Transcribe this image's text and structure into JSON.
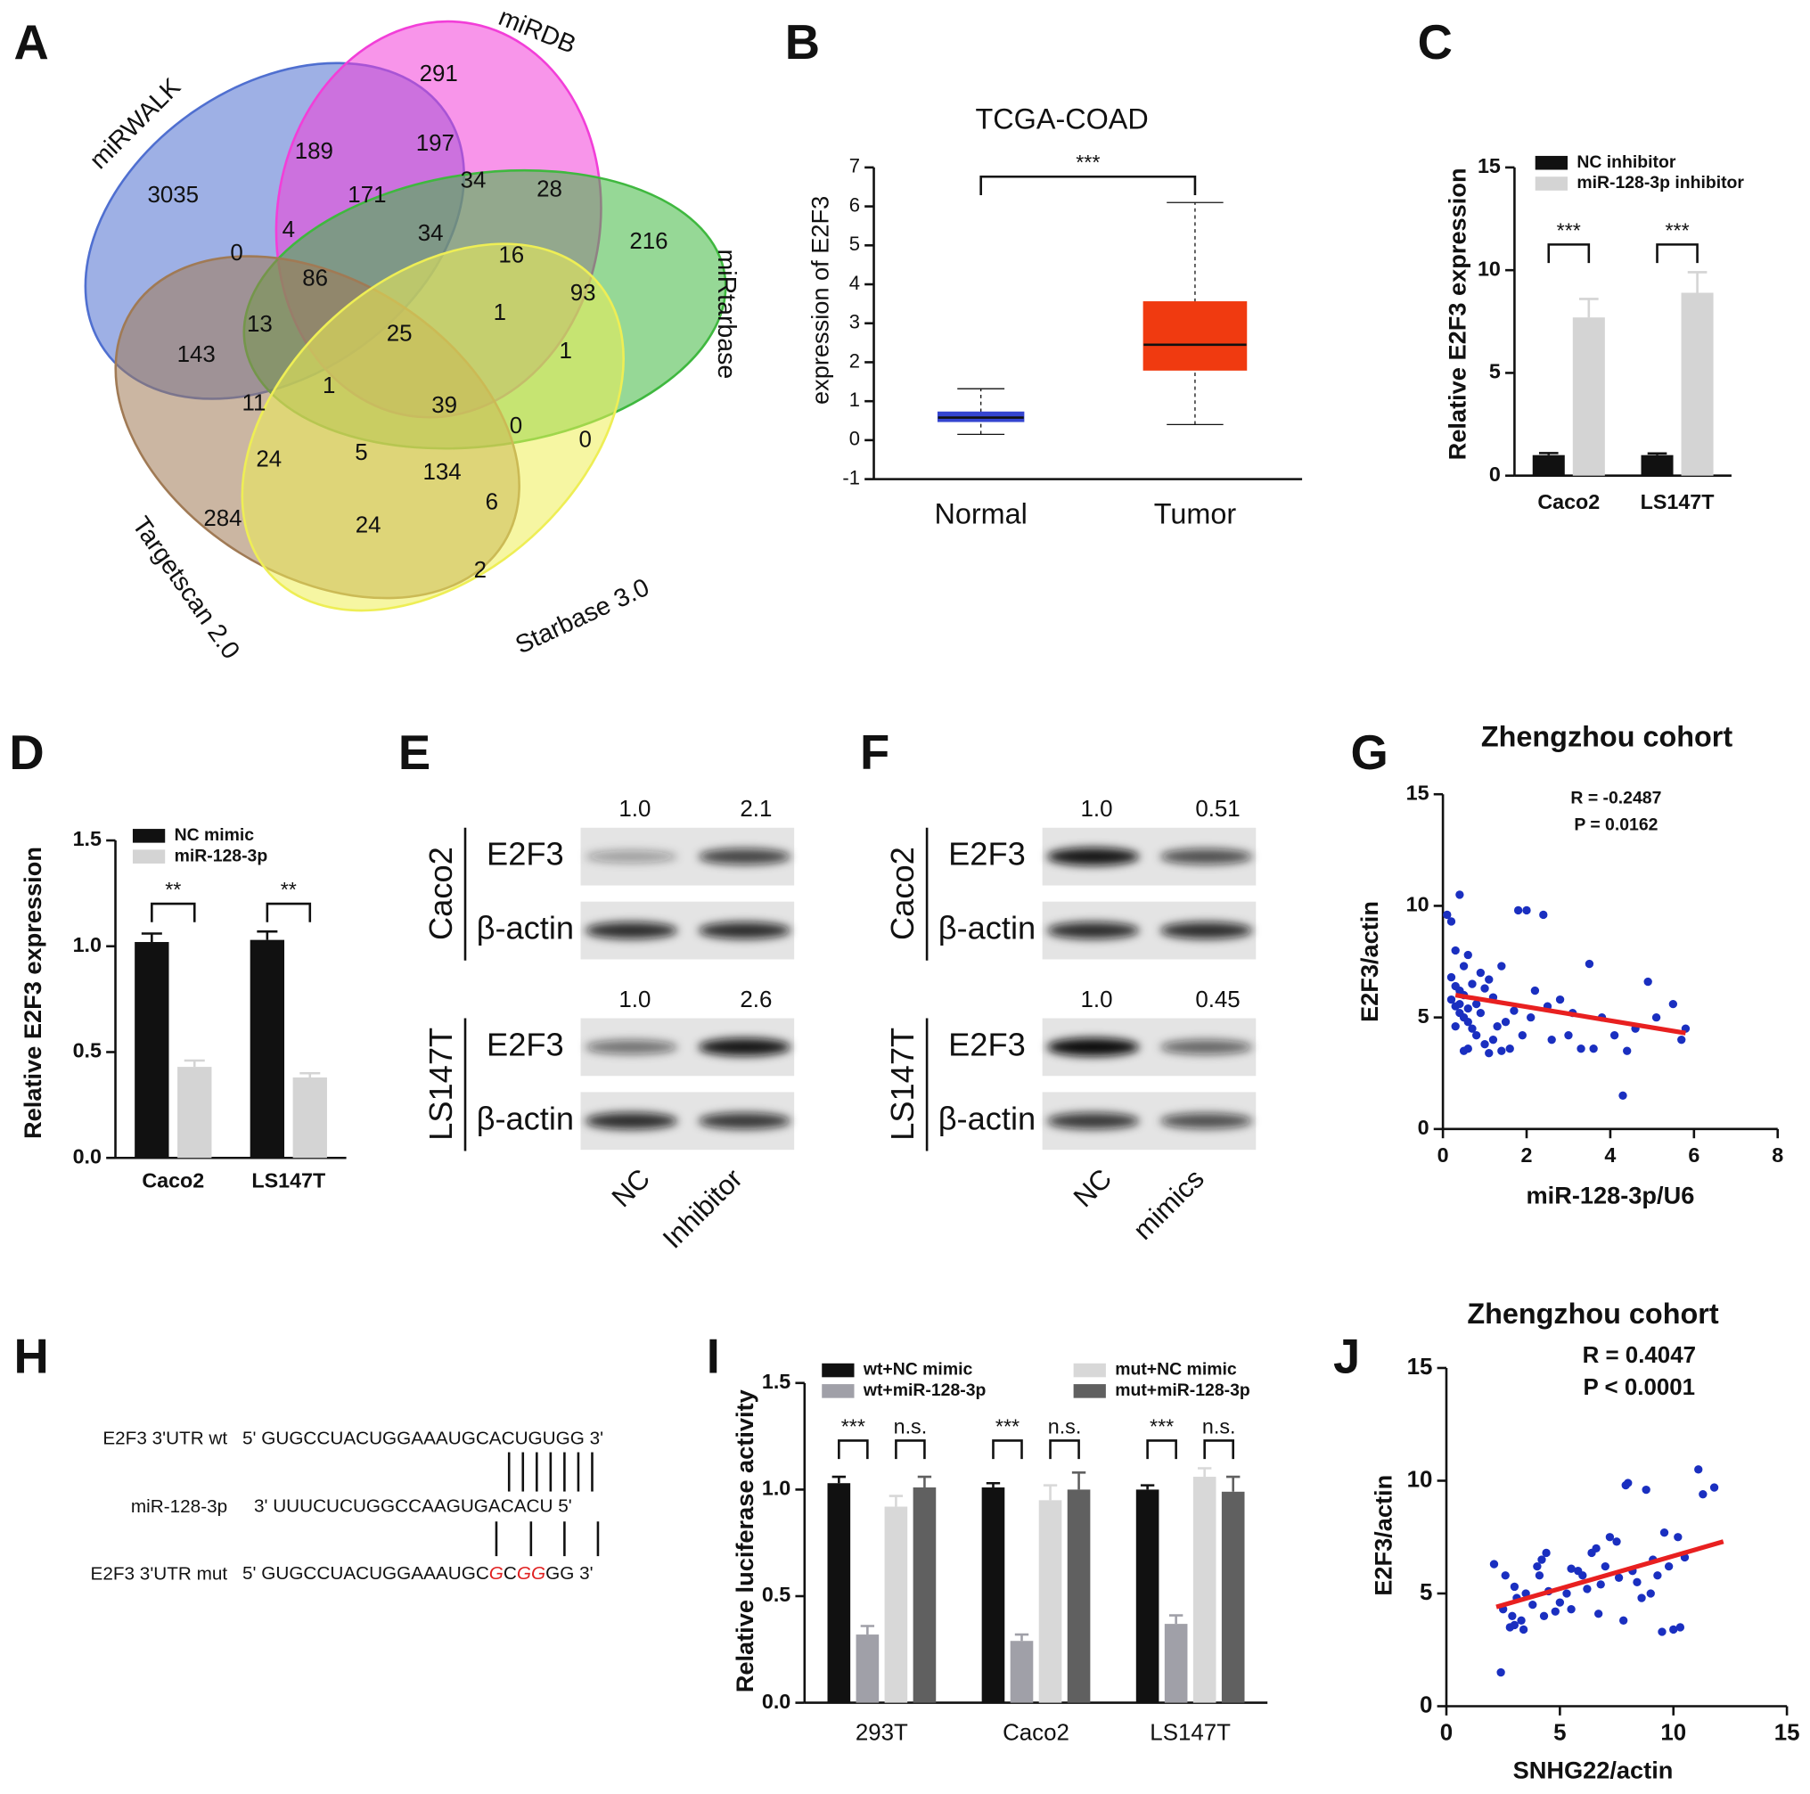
{
  "venn": {
    "panel": "A",
    "sets": [
      {
        "name": "miRWALK",
        "color": "#4f6fd0"
      },
      {
        "name": "miRDB",
        "color": "#f23ed8"
      },
      {
        "name": "miRtarbase",
        "color": "#3fb83f"
      },
      {
        "name": "Targetscan 2.0",
        "color": "#a07a55"
      },
      {
        "name": "Starbase 3.0",
        "color": "#eeee55"
      }
    ],
    "regions": [
      291,
      189,
      197,
      3035,
      171,
      34,
      28,
      216,
      0,
      4,
      34,
      16,
      86,
      93,
      13,
      25,
      1,
      143,
      1,
      1,
      11,
      39,
      0,
      0,
      24,
      5,
      134,
      6,
      284,
      24,
      2
    ]
  },
  "chart_data": [
    {
      "type": "box",
      "panel": "B",
      "title": "TCGA-COAD",
      "y_label": "expression of E2F3",
      "categories": [
        "Normal",
        "Tumor"
      ],
      "colors": [
        "#3545d0",
        "#f03a10"
      ],
      "boxes": [
        {
          "min": 0.15,
          "q1": 0.48,
          "median": 0.58,
          "q3": 0.72,
          "max": 1.32
        },
        {
          "min": 0.4,
          "q1": 1.8,
          "median": 2.45,
          "q3": 3.55,
          "max": 6.1
        }
      ],
      "annotations": [
        "***"
      ],
      "ylim": [
        -1,
        7
      ],
      "yticks": [
        -1,
        0,
        1,
        2,
        3,
        4,
        5,
        6,
        7
      ]
    },
    {
      "type": "bar",
      "panel": "C",
      "y_label": "Relative E2F3 expression",
      "categories": [
        "Caco2",
        "LS147T"
      ],
      "series": [
        {
          "name": "NC inhibitor",
          "color": "#111111",
          "values": [
            1.0,
            1.0
          ],
          "errors": [
            0.1,
            0.08
          ]
        },
        {
          "name": "miR-128-3p inhibitor",
          "color": "#d4d4d4",
          "values": [
            7.7,
            8.9
          ],
          "errors": [
            0.9,
            1.0
          ]
        }
      ],
      "annotations": [
        "***",
        "***"
      ],
      "ylim": [
        0,
        15
      ],
      "yticks": [
        0,
        5,
        10,
        15
      ]
    },
    {
      "type": "bar",
      "panel": "D",
      "y_label": "Relative E2F3 expression",
      "categories": [
        "Caco2",
        "LS147T"
      ],
      "series": [
        {
          "name": "NC mimic",
          "color": "#111111",
          "values": [
            1.02,
            1.03
          ],
          "errors": [
            0.04,
            0.04
          ]
        },
        {
          "name": "miR-128-3p",
          "color": "#d4d4d4",
          "values": [
            0.43,
            0.38
          ],
          "errors": [
            0.03,
            0.02
          ]
        }
      ],
      "annotations": [
        "**",
        "**"
      ],
      "ylim": [
        0,
        1.5
      ],
      "yticks": [
        {
          "value": 0,
          "label": "0.0"
        },
        0.5,
        {
          "value": 1,
          "label": "1.0"
        },
        1.5
      ]
    },
    {
      "type": "scatter",
      "panel": "G",
      "title": "Zhengzhou cohort",
      "x_label": "miR-128-3p/U6",
      "y_label": "E2F3/actin",
      "color": "#1a2fc0",
      "fit_color": "#e82020",
      "x": [
        0.1,
        0.2,
        0.4,
        0.3,
        0.5,
        0.6,
        0.2,
        0.3,
        0.4,
        0.5,
        0.2,
        0.3,
        0.4,
        0.5,
        0.6,
        0.7,
        0.8,
        0.9,
        0.6,
        0.7,
        0.8,
        1.0,
        1.1,
        1.2,
        1.3,
        1.0,
        1.1,
        1.2,
        1.4,
        1.5,
        1.6,
        1.7,
        1.8,
        1.9,
        2.0,
        2.1,
        2.2,
        2.4,
        2.5,
        2.6,
        2.8,
        3.0,
        3.1,
        3.3,
        3.5,
        3.6,
        3.8,
        4.1,
        4.3,
        4.4,
        4.6,
        4.9,
        5.1,
        5.5,
        5.7,
        5.8,
        0.9,
        1.4,
        0.4,
        0.6,
        0.3,
        0.5
      ],
      "y": [
        9.6,
        9.3,
        10.5,
        8.0,
        7.3,
        7.8,
        6.8,
        6.4,
        6.2,
        6.0,
        5.8,
        5.5,
        5.2,
        5.0,
        4.8,
        6.5,
        5.6,
        5.2,
        3.6,
        4.5,
        4.2,
        3.8,
        3.4,
        4.0,
        4.6,
        6.3,
        6.7,
        5.9,
        3.5,
        4.8,
        3.6,
        5.3,
        9.8,
        4.2,
        9.8,
        5.0,
        6.2,
        9.6,
        5.5,
        4.0,
        5.8,
        4.2,
        5.2,
        3.6,
        7.4,
        3.6,
        5.0,
        4.2,
        1.5,
        3.5,
        4.5,
        6.6,
        5.0,
        5.6,
        4.0,
        4.5,
        7.0,
        7.3,
        5.6,
        5.4,
        4.6,
        3.5
      ],
      "fit": {
        "x": [
          0.3,
          5.8
        ],
        "y": [
          6.0,
          4.3
        ]
      },
      "annotations": [
        "R = -0.2487",
        "P = 0.0162"
      ],
      "xlim": [
        0,
        8
      ],
      "xticks": [
        0,
        2,
        4,
        6,
        8
      ],
      "ylim": [
        0,
        15
      ],
      "yticks": [
        0,
        5,
        10,
        15
      ]
    },
    {
      "type": "bar",
      "panel": "I",
      "y_label": "Relative luciferase activity",
      "categories": [
        "293T",
        "Caco2",
        "LS147T"
      ],
      "series": [
        {
          "name": "wt+NC mimic",
          "color": "#111111",
          "values": [
            1.03,
            1.01,
            1.0
          ],
          "errors": [
            0.03,
            0.02,
            0.02
          ]
        },
        {
          "name": "wt+miR-128-3p",
          "color": "#a0a0a8",
          "values": [
            0.32,
            0.29,
            0.37
          ],
          "errors": [
            0.04,
            0.03,
            0.04
          ]
        },
        {
          "name": "mut+NC mimic",
          "color": "#d8d8d8",
          "values": [
            0.92,
            0.95,
            1.06
          ],
          "errors": [
            0.05,
            0.07,
            0.04
          ]
        },
        {
          "name": "mut+miR-128-3p",
          "color": "#606060",
          "values": [
            1.01,
            1.0,
            0.99
          ],
          "errors": [
            0.05,
            0.08,
            0.07
          ]
        }
      ],
      "annotations": [
        "***",
        "n.s.",
        "***",
        "n.s.",
        "***",
        "n.s."
      ],
      "ylim": [
        0,
        1.5
      ],
      "yticks": [
        {
          "value": 0,
          "label": "0.0"
        },
        0.5,
        {
          "value": 1,
          "label": "1.0"
        },
        1.5
      ]
    },
    {
      "type": "scatter",
      "panel": "J",
      "title": "Zhengzhou cohort",
      "x_label": "SNHG22/actin",
      "y_label": "E2F3/actin",
      "color": "#1a2fc0",
      "fit_color": "#e82020",
      "x": [
        2.4,
        2.1,
        2.6,
        2.5,
        2.8,
        3.0,
        3.1,
        3.0,
        3.3,
        3.5,
        3.8,
        4.0,
        4.1,
        4.2,
        4.4,
        4.5,
        4.8,
        5.0,
        5.3,
        5.5,
        5.8,
        6.0,
        6.2,
        6.4,
        6.6,
        6.8,
        7.0,
        7.2,
        7.5,
        7.8,
        7.9,
        8.0,
        8.2,
        8.4,
        8.6,
        8.8,
        9.0,
        9.3,
        9.5,
        9.6,
        9.8,
        10.0,
        10.2,
        10.3,
        11.1,
        11.3,
        11.8,
        4.3,
        5.5,
        6.7,
        3.4,
        2.9,
        10.5,
        9.1,
        7.6
      ],
      "y": [
        1.5,
        6.3,
        5.8,
        4.3,
        3.5,
        3.6,
        4.8,
        5.3,
        3.8,
        5.0,
        4.5,
        6.2,
        5.8,
        6.5,
        6.8,
        5.1,
        4.2,
        4.6,
        5.0,
        4.3,
        6.0,
        5.8,
        5.2,
        6.8,
        7.0,
        5.4,
        6.2,
        7.5,
        7.3,
        3.8,
        9.8,
        9.9,
        6.0,
        5.5,
        4.8,
        9.6,
        5.0,
        5.8,
        3.3,
        7.7,
        6.2,
        3.4,
        7.5,
        3.5,
        10.5,
        9.4,
        9.7,
        4.0,
        6.1,
        4.1,
        3.4,
        4.0,
        6.6,
        6.5,
        5.7
      ],
      "fit": {
        "x": [
          2.2,
          12.2
        ],
        "y": [
          4.4,
          7.3
        ]
      },
      "annotations": [
        "R = 0.4047",
        "P < 0.0001"
      ],
      "xlim": [
        0,
        15
      ],
      "xticks": [
        0,
        5,
        10,
        15
      ],
      "ylim": [
        0,
        15
      ],
      "yticks": [
        0,
        5,
        10,
        15
      ]
    }
  ],
  "blots": [
    {
      "panel": "E",
      "lanes": [
        "NC",
        "Inhibitor"
      ],
      "blocks": [
        {
          "cell": "Caco2",
          "quant": [
            "1.0",
            "2.1"
          ],
          "rows": [
            "E2F3",
            "β-actin"
          ]
        },
        {
          "cell": "LS147T",
          "quant": [
            "1.0",
            "2.6"
          ],
          "rows": [
            "E2F3",
            "β-actin"
          ]
        }
      ]
    },
    {
      "panel": "F",
      "lanes": [
        "NC",
        "mimics"
      ],
      "blocks": [
        {
          "cell": "Caco2",
          "quant": [
            "1.0",
            "0.51"
          ],
          "rows": [
            "E2F3",
            "β-actin"
          ]
        },
        {
          "cell": "LS147T",
          "quant": [
            "1.0",
            "0.45"
          ],
          "rows": [
            "E2F3",
            "β-actin"
          ]
        }
      ]
    }
  ],
  "sequence": {
    "panel": "H",
    "highlight_color": "#e02020",
    "rows": [
      {
        "label": "E2F3 3'UTR wt",
        "segments": [
          {
            "text": "5' GUGCCUACUGGAAAUGCACUGUGG 3'",
            "mutated": false
          }
        ]
      },
      {
        "label": "miR-128-3p",
        "segments": [
          {
            "text": "3' UUUCUCUGGCCAAGUGACACU 5'",
            "mutated": false
          }
        ]
      },
      {
        "label": "E2F3 3'UTR mut",
        "segments": [
          {
            "text": "5' GUGCCUACUGGAAAUGC",
            "mutated": false
          },
          {
            "text": "G",
            "mutated": true
          },
          {
            "text": "C",
            "mutated": false
          },
          {
            "text": "G",
            "mutated": true
          },
          {
            "text": "G",
            "mutated": true
          },
          {
            "text": "GG 3'",
            "mutated": false
          }
        ]
      }
    ]
  }
}
